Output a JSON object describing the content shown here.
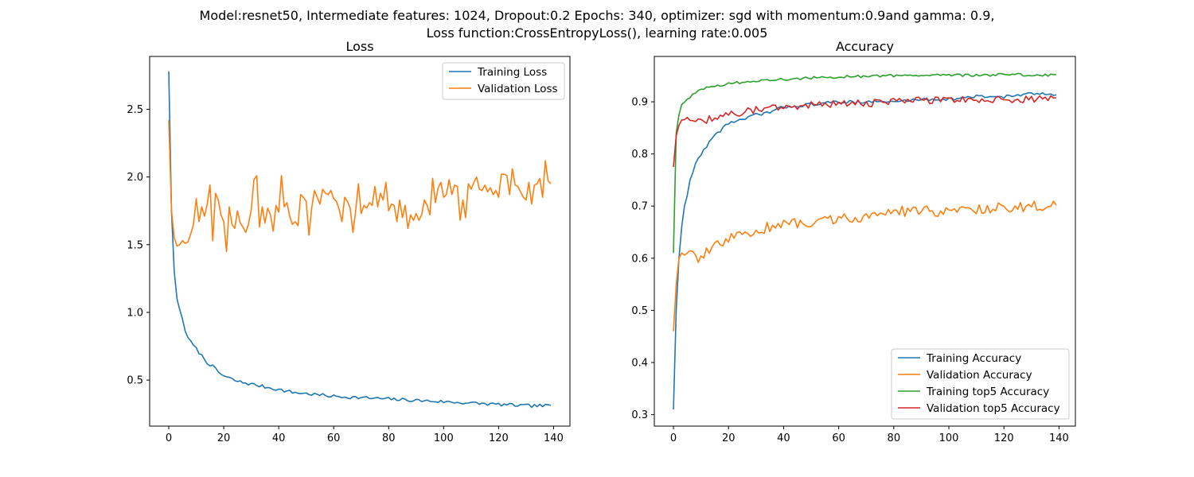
{
  "figure": {
    "suptitle_line1": "Model:resnet50, Intermediate features: 1024, Dropout:0.2 Epochs: 340, optimizer: sgd with momentum:0.9and gamma: 0.9,",
    "suptitle_line2": "Loss function:CrossEntropyLoss(), learning rate:0.005"
  },
  "chart_data": [
    {
      "type": "line",
      "title": "Loss",
      "xlabel": "",
      "ylabel": "",
      "xlim": [
        -6.95,
        145.95
      ],
      "ylim": [
        0.16,
        2.89
      ],
      "xticks": [
        0,
        20,
        40,
        60,
        80,
        100,
        120,
        140
      ],
      "yticks": [
        0.5,
        1.0,
        1.5,
        2.0,
        2.5
      ],
      "ytick_labels": [
        "0.5",
        "1.0",
        "1.5",
        "2.0",
        "2.5"
      ],
      "grid": false,
      "legend": "upper right",
      "colors": [
        "#1f77b4",
        "#ff7f0e"
      ],
      "series": [
        {
          "name": "Training Loss",
          "knots": [
            [
              0,
              2.78
            ],
            [
              1,
              1.75
            ],
            [
              2,
              1.3
            ],
            [
              3,
              1.1
            ],
            [
              4,
              1.02
            ],
            [
              5,
              0.95
            ],
            [
              6,
              0.86
            ],
            [
              8,
              0.78
            ],
            [
              10,
              0.73
            ],
            [
              12,
              0.68
            ],
            [
              14,
              0.63
            ],
            [
              16,
              0.6
            ],
            [
              18,
              0.56
            ],
            [
              20,
              0.53
            ],
            [
              25,
              0.49
            ],
            [
              30,
              0.47
            ],
            [
              35,
              0.45
            ],
            [
              40,
              0.43
            ],
            [
              45,
              0.41
            ],
            [
              50,
              0.4
            ],
            [
              60,
              0.38
            ],
            [
              70,
              0.37
            ],
            [
              80,
              0.36
            ],
            [
              90,
              0.35
            ],
            [
              100,
              0.34
            ],
            [
              110,
              0.33
            ],
            [
              120,
              0.32
            ],
            [
              130,
              0.31
            ],
            [
              139,
              0.31
            ]
          ],
          "jitter": 0.012
        },
        {
          "name": "Validation Loss",
          "points": [
            [
              0,
              2.42
            ],
            [
              1,
              1.75
            ],
            [
              2,
              1.55
            ],
            [
              3,
              1.49
            ],
            [
              4,
              1.5
            ],
            [
              5,
              1.53
            ],
            [
              6,
              1.51
            ],
            [
              7,
              1.52
            ],
            [
              8,
              1.58
            ],
            [
              9,
              1.65
            ],
            [
              10,
              1.84
            ],
            [
              11,
              1.67
            ],
            [
              12,
              1.78
            ],
            [
              13,
              1.71
            ],
            [
              14,
              1.8
            ],
            [
              15,
              1.94
            ],
            [
              16,
              1.53
            ],
            [
              17,
              1.88
            ],
            [
              18,
              1.83
            ],
            [
              19,
              1.72
            ],
            [
              20,
              1.67
            ],
            [
              21,
              1.45
            ],
            [
              22,
              1.78
            ],
            [
              23,
              1.65
            ],
            [
              24,
              1.62
            ],
            [
              25,
              1.75
            ],
            [
              26,
              1.66
            ],
            [
              27,
              1.63
            ],
            [
              28,
              1.59
            ],
            [
              29,
              1.65
            ],
            [
              30,
              1.76
            ],
            [
              31,
              1.98
            ],
            [
              32,
              2.01
            ],
            [
              33,
              1.63
            ],
            [
              34,
              1.78
            ],
            [
              35,
              1.66
            ],
            [
              36,
              1.77
            ],
            [
              37,
              1.72
            ],
            [
              38,
              1.6
            ],
            [
              39,
              1.79
            ],
            [
              40,
              1.74
            ],
            [
              41,
              2.01
            ],
            [
              42,
              1.78
            ],
            [
              43,
              1.81
            ],
            [
              44,
              1.71
            ],
            [
              45,
              1.65
            ],
            [
              46,
              1.67
            ],
            [
              47,
              1.64
            ],
            [
              48,
              1.87
            ],
            [
              49,
              1.85
            ],
            [
              50,
              1.82
            ],
            [
              51,
              1.57
            ],
            [
              52,
              1.77
            ],
            [
              53,
              1.9
            ],
            [
              54,
              1.85
            ],
            [
              55,
              1.8
            ],
            [
              56,
              1.91
            ],
            [
              57,
              1.88
            ],
            [
              58,
              1.87
            ],
            [
              59,
              1.9
            ],
            [
              60,
              1.84
            ],
            [
              61,
              1.82
            ],
            [
              62,
              1.76
            ],
            [
              63,
              1.67
            ],
            [
              64,
              1.85
            ],
            [
              65,
              1.82
            ],
            [
              66,
              1.77
            ],
            [
              67,
              1.59
            ],
            [
              68,
              1.75
            ],
            [
              69,
              1.95
            ],
            [
              70,
              1.73
            ],
            [
              71,
              1.79
            ],
            [
              72,
              1.77
            ],
            [
              73,
              1.81
            ],
            [
              74,
              1.79
            ],
            [
              75,
              1.93
            ],
            [
              76,
              1.78
            ],
            [
              77,
              1.88
            ],
            [
              78,
              1.83
            ],
            [
              79,
              1.96
            ],
            [
              80,
              1.75
            ],
            [
              81,
              1.8
            ],
            [
              82,
              1.79
            ],
            [
              83,
              1.67
            ],
            [
              84,
              1.83
            ],
            [
              85,
              1.7
            ],
            [
              86,
              1.79
            ],
            [
              87,
              1.62
            ],
            [
              88,
              1.72
            ],
            [
              89,
              1.68
            ],
            [
              90,
              1.73
            ],
            [
              91,
              1.68
            ],
            [
              92,
              1.72
            ],
            [
              93,
              1.83
            ],
            [
              94,
              1.79
            ],
            [
              95,
              1.72
            ],
            [
              96,
              1.99
            ],
            [
              97,
              1.81
            ],
            [
              98,
              1.92
            ],
            [
              99,
              1.96
            ],
            [
              100,
              1.85
            ],
            [
              101,
              1.87
            ],
            [
              102,
              1.98
            ],
            [
              103,
              1.87
            ],
            [
              104,
              1.94
            ],
            [
              105,
              1.93
            ],
            [
              106,
              1.68
            ],
            [
              107,
              1.83
            ],
            [
              108,
              1.7
            ],
            [
              109,
              1.95
            ],
            [
              110,
              1.91
            ],
            [
              111,
              1.96
            ],
            [
              112,
              2.0
            ],
            [
              113,
              1.91
            ],
            [
              114,
              1.9
            ],
            [
              115,
              1.94
            ],
            [
              116,
              1.89
            ],
            [
              117,
              1.92
            ],
            [
              118,
              1.87
            ],
            [
              119,
              1.9
            ],
            [
              120,
              1.85
            ],
            [
              121,
              2.02
            ],
            [
              122,
              2.02
            ],
            [
              123,
              2.01
            ],
            [
              124,
              1.87
            ],
            [
              125,
              2.06
            ],
            [
              126,
              1.94
            ],
            [
              127,
              1.93
            ],
            [
              128,
              1.89
            ],
            [
              129,
              1.85
            ],
            [
              130,
              1.83
            ],
            [
              131,
              1.96
            ],
            [
              132,
              1.8
            ],
            [
              133,
              1.94
            ],
            [
              134,
              1.95
            ],
            [
              135,
              1.99
            ],
            [
              136,
              1.85
            ],
            [
              137,
              2.12
            ],
            [
              138,
              1.97
            ],
            [
              139,
              1.95
            ]
          ]
        }
      ]
    },
    {
      "type": "line",
      "title": "Accuracy",
      "xlabel": "",
      "ylabel": "",
      "xlim": [
        -6.95,
        145.95
      ],
      "ylim": [
        0.278,
        0.987
      ],
      "xticks": [
        0,
        20,
        40,
        60,
        80,
        100,
        120,
        140
      ],
      "yticks": [
        0.3,
        0.4,
        0.5,
        0.6,
        0.7,
        0.8,
        0.9
      ],
      "ytick_labels": [
        "0.3",
        "0.4",
        "0.5",
        "0.6",
        "0.7",
        "0.8",
        "0.9"
      ],
      "grid": false,
      "legend": "lower right",
      "colors": [
        "#1f77b4",
        "#ff7f0e",
        "#2ca02c",
        "#d62728"
      ],
      "series": [
        {
          "name": "Training Accuracy",
          "knots": [
            [
              0,
              0.31
            ],
            [
              1,
              0.5
            ],
            [
              2,
              0.6
            ],
            [
              3,
              0.66
            ],
            [
              4,
              0.7
            ],
            [
              5,
              0.72
            ],
            [
              6,
              0.75
            ],
            [
              8,
              0.78
            ],
            [
              10,
              0.8
            ],
            [
              12,
              0.815
            ],
            [
              14,
              0.83
            ],
            [
              16,
              0.84
            ],
            [
              18,
              0.85
            ],
            [
              20,
              0.86
            ],
            [
              25,
              0.865
            ],
            [
              30,
              0.875
            ],
            [
              35,
              0.88
            ],
            [
              40,
              0.89
            ],
            [
              50,
              0.895
            ],
            [
              60,
              0.9
            ],
            [
              70,
              0.9
            ],
            [
              80,
              0.9
            ],
            [
              90,
              0.905
            ],
            [
              100,
              0.905
            ],
            [
              110,
              0.91
            ],
            [
              120,
              0.91
            ],
            [
              130,
              0.915
            ],
            [
              139,
              0.915
            ]
          ],
          "jitter": 0.003
        },
        {
          "name": "Validation Accuracy",
          "knots": [
            [
              0,
              0.46
            ],
            [
              1,
              0.55
            ],
            [
              2,
              0.6
            ],
            [
              3,
              0.61
            ],
            [
              5,
              0.61
            ],
            [
              8,
              0.6
            ],
            [
              11,
              0.605
            ],
            [
              14,
              0.62
            ],
            [
              18,
              0.63
            ],
            [
              22,
              0.64
            ],
            [
              26,
              0.645
            ],
            [
              30,
              0.65
            ],
            [
              34,
              0.66
            ],
            [
              40,
              0.665
            ],
            [
              50,
              0.67
            ],
            [
              60,
              0.675
            ],
            [
              70,
              0.68
            ],
            [
              80,
              0.69
            ],
            [
              90,
              0.69
            ],
            [
              100,
              0.69
            ],
            [
              110,
              0.695
            ],
            [
              120,
              0.697
            ],
            [
              130,
              0.7
            ],
            [
              139,
              0.7
            ]
          ],
          "jitter": 0.01
        },
        {
          "name": "Training top5 Accuracy",
          "knots": [
            [
              0,
              0.61
            ],
            [
              1,
              0.84
            ],
            [
              2,
              0.875
            ],
            [
              3,
              0.895
            ],
            [
              5,
              0.905
            ],
            [
              7,
              0.915
            ],
            [
              10,
              0.925
            ],
            [
              15,
              0.93
            ],
            [
              20,
              0.935
            ],
            [
              30,
              0.94
            ],
            [
              40,
              0.943
            ],
            [
              50,
              0.946
            ],
            [
              60,
              0.948
            ],
            [
              70,
              0.949
            ],
            [
              80,
              0.95
            ],
            [
              90,
              0.95
            ],
            [
              100,
              0.951
            ],
            [
              110,
              0.951
            ],
            [
              120,
              0.952
            ],
            [
              130,
              0.952
            ],
            [
              139,
              0.951
            ]
          ],
          "jitter": 0.0025
        },
        {
          "name": "Validation top5 Accuracy",
          "knots": [
            [
              0,
              0.775
            ],
            [
              1,
              0.835
            ],
            [
              2,
              0.855
            ],
            [
              3,
              0.865
            ],
            [
              5,
              0.87
            ],
            [
              8,
              0.865
            ],
            [
              12,
              0.865
            ],
            [
              16,
              0.87
            ],
            [
              20,
              0.875
            ],
            [
              25,
              0.88
            ],
            [
              30,
              0.885
            ],
            [
              40,
              0.89
            ],
            [
              50,
              0.895
            ],
            [
              60,
              0.895
            ],
            [
              70,
              0.897
            ],
            [
              80,
              0.9
            ],
            [
              90,
              0.903
            ],
            [
              100,
              0.903
            ],
            [
              110,
              0.905
            ],
            [
              120,
              0.905
            ],
            [
              130,
              0.905
            ],
            [
              139,
              0.905
            ]
          ],
          "jitter": 0.007
        }
      ]
    }
  ]
}
